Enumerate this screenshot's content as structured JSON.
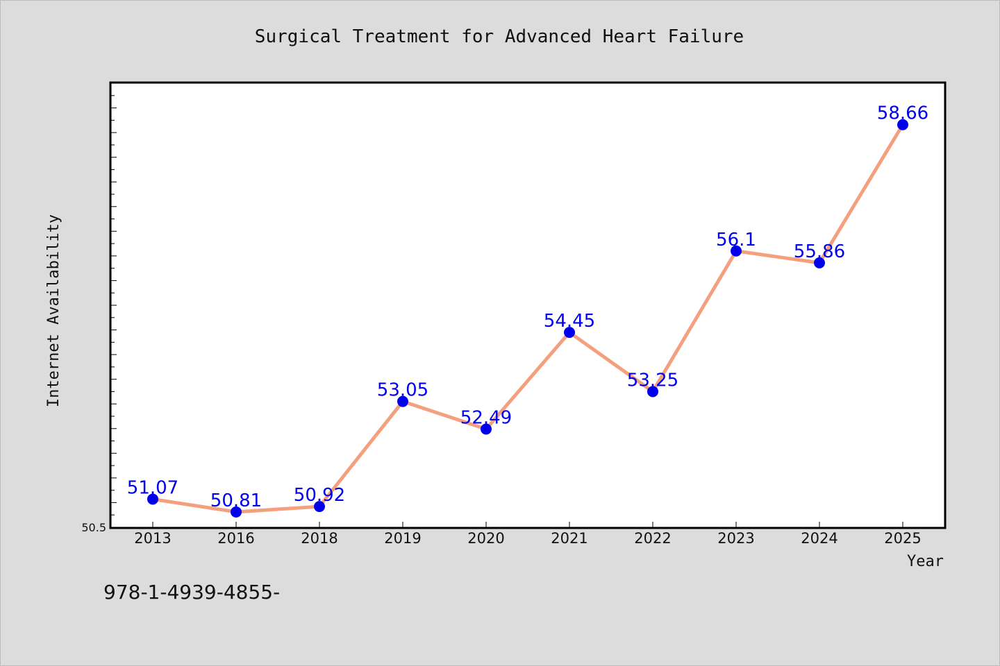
{
  "chart_data": {
    "type": "line",
    "title": "Surgical Treatment for Advanced Heart Failure",
    "xlabel": "Year",
    "ylabel": "Internet Availability",
    "categories": [
      "2013",
      "2016",
      "2018",
      "2019",
      "2020",
      "2021",
      "2022",
      "2023",
      "2024",
      "2025"
    ],
    "series": [
      {
        "values": [
          51.07,
          50.81,
          50.92,
          53.05,
          52.49,
          54.45,
          53.25,
          56.1,
          55.86,
          58.66
        ],
        "data_labels": [
          "51.07",
          "50.81",
          "50.92",
          "53.05",
          "52.49",
          "54.45",
          "53.25",
          "56.1",
          "55.86",
          "58.66"
        ]
      }
    ],
    "ylim": [
      50.5,
      59.5
    ],
    "y_min_label": "50.5",
    "grid": false,
    "line_color": "#f4a07f",
    "marker_color": "#0000ee",
    "label_color": "#0000ee",
    "background_color": "#dcdcdc",
    "plot_background_color": "#ffffff"
  },
  "footer_text": "978-1-4939-4855-"
}
